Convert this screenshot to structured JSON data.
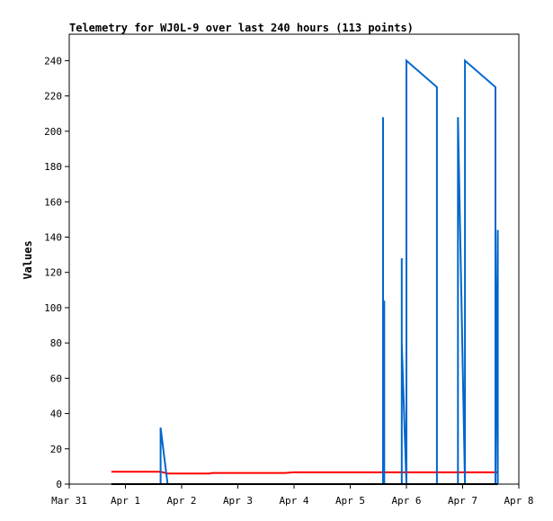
{
  "chart_data": {
    "type": "line",
    "title": "Telemetry for WJ0L-9 over last 240 hours (113 points)",
    "xlabel": "",
    "ylabel": "Values",
    "xlim": [
      "Mar 31",
      "Apr 8"
    ],
    "ylim": [
      0,
      255
    ],
    "x_ticks": [
      "Mar 31",
      "Apr 1",
      "Apr 2",
      "Apr 3",
      "Apr 4",
      "Apr 5",
      "Apr 6",
      "Apr 7",
      "Apr 8"
    ],
    "y_ticks": [
      0,
      20,
      40,
      60,
      80,
      100,
      120,
      140,
      160,
      180,
      200,
      220,
      240
    ],
    "grid": false,
    "legend": "none",
    "series": [
      {
        "color": "#ff0000",
        "x": [
          "Mar 31 18:00",
          "Apr 1 15:00",
          "Apr 1 18:00",
          "Apr 2 12:00",
          "Apr 2 13:00",
          "Apr 3 20:00",
          "Apr 4 00:00",
          "Apr 7 15:00"
        ],
        "y": [
          7,
          7,
          6,
          6,
          6.3,
          6.3,
          6.7,
          6.7
        ]
      },
      {
        "color": "#0066cc",
        "x": [
          "Mar 31 18:00",
          "Apr 1 15:00",
          "Apr 1 15:00",
          "Apr 1 18:00",
          "Apr 5 14:00",
          "Apr 5 14:00",
          "Apr 5 14:00",
          "Apr 5 14:30",
          "Apr 5 14:30",
          "Apr 5 22:00",
          "Apr 5 22:00",
          "Apr 5 22:00",
          "Apr 5 22:00",
          "Apr 6 00:00",
          "Apr 6 00:00",
          "Apr 6 13:00",
          "Apr 6 13:00",
          "Apr 6 13:00",
          "Apr 6 22:00",
          "Apr 6 22:00",
          "Apr 7 01:00",
          "Apr 7 01:00",
          "Apr 7 01:00",
          "Apr 7 01:00",
          "Apr 7 14:00",
          "Apr 7 14:00",
          "Apr 7 15:00",
          "Apr 7 15:00"
        ],
        "y": [
          0,
          0,
          32,
          0,
          0,
          208,
          0,
          104,
          0,
          0,
          128,
          30,
          80,
          0,
          240,
          225,
          175,
          0,
          0,
          208,
          0,
          240,
          0,
          240,
          225,
          0,
          144,
          0
        ]
      },
      {
        "color": "#000000",
        "x": [
          "Mar 31 18:00",
          "Apr 7 15:00"
        ],
        "y": [
          0,
          0
        ]
      }
    ]
  }
}
